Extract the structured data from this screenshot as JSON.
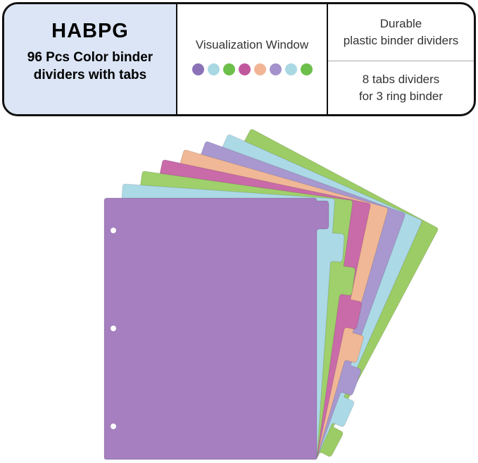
{
  "header": {
    "brand": "HABPG",
    "subtitle_line1": "96 Pcs Color binder",
    "subtitle_line2": "dividers with tabs",
    "window_label": "Visualization Window",
    "dot_colors": [
      "#8b72b8",
      "#a9d8e3",
      "#6cbf4a",
      "#c0589e",
      "#f1b596",
      "#a392cc",
      "#a9d8e3",
      "#6cbf4a"
    ],
    "feature1_line1": "Durable",
    "feature1_line2": "plastic binder dividers",
    "feature2_line1": "8 tabs dividers",
    "feature2_line2": "for 3 ring binder"
  },
  "dividers": {
    "count": 8,
    "colors_back_to_front": [
      "#9ccc65",
      "#acd9e6",
      "#a898cf",
      "#f0b896",
      "#c96aa9",
      "#9fd06b",
      "#acd9e6",
      "#a57fbf"
    ],
    "ring_holes": 3
  }
}
